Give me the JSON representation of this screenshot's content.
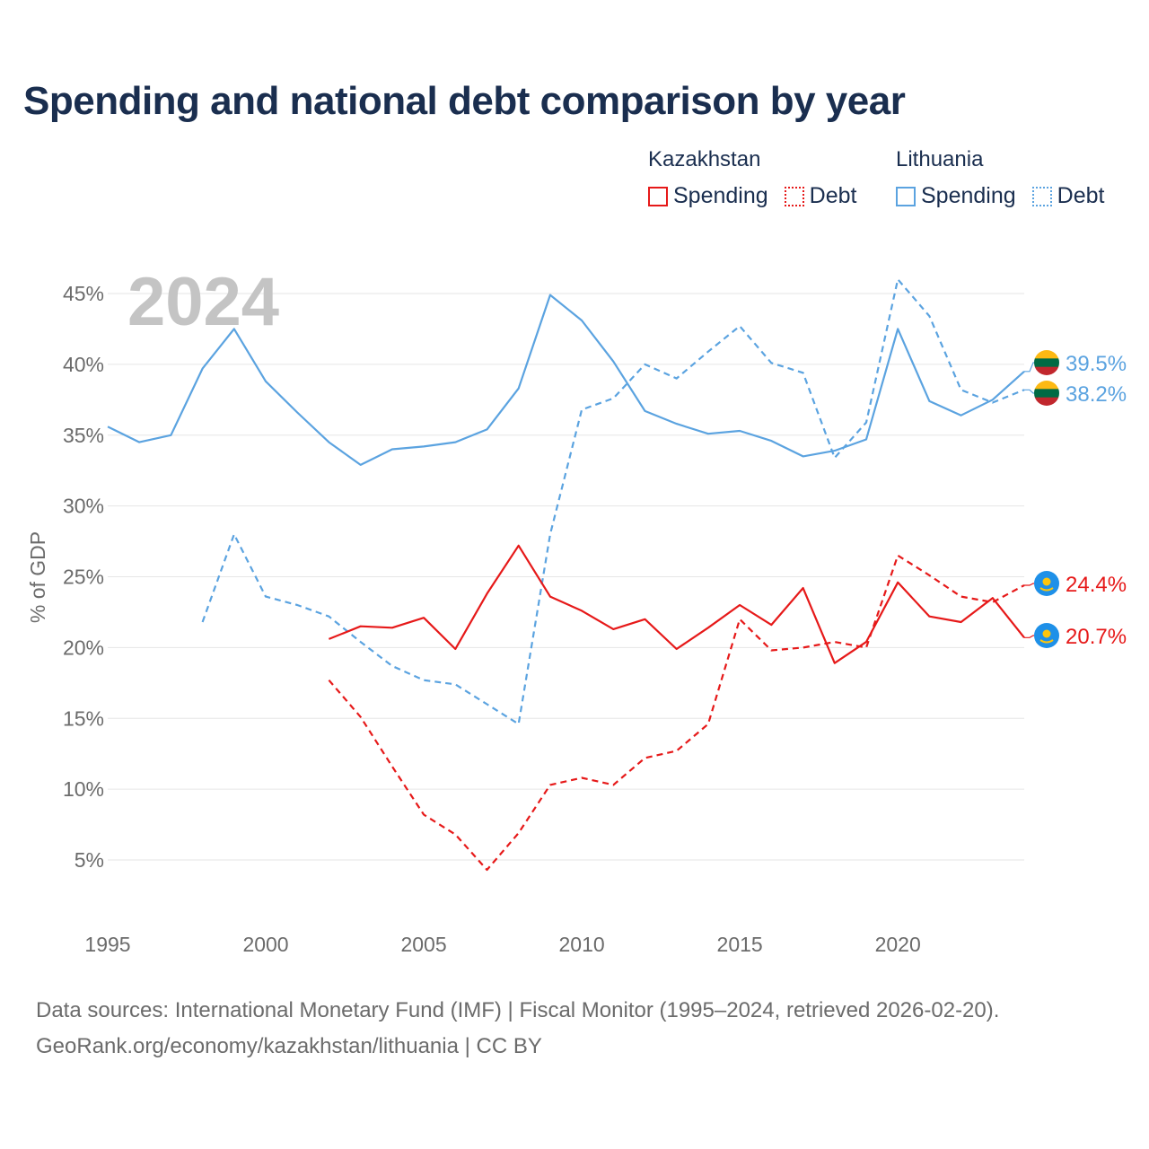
{
  "title": "Spending and national debt comparison by year",
  "legend": {
    "groups": [
      {
        "country": "Kazakhstan",
        "color": "#e61919",
        "items": [
          {
            "label": "Spending",
            "style": "solid"
          },
          {
            "label": "Debt",
            "style": "dotted"
          }
        ]
      },
      {
        "country": "Lithuania",
        "color": "#5ba3e0",
        "items": [
          {
            "label": "Spending",
            "style": "solid"
          },
          {
            "label": "Debt",
            "style": "dotted"
          }
        ]
      }
    ]
  },
  "chart_data": {
    "type": "line",
    "year_watermark": "2024",
    "ylabel": "% of GDP",
    "xlim": [
      1995,
      2024
    ],
    "ylim": [
      0,
      47
    ],
    "yticks": [
      5,
      10,
      15,
      20,
      25,
      30,
      35,
      40,
      45
    ],
    "ytick_labels": [
      "5%",
      "10%",
      "15%",
      "20%",
      "25%",
      "30%",
      "35%",
      "40%",
      "45%"
    ],
    "xticks": [
      1995,
      2000,
      2005,
      2010,
      2015,
      2020
    ],
    "xtick_labels": [
      "1995",
      "2000",
      "2005",
      "2010",
      "2015",
      "2020"
    ],
    "series": [
      {
        "name": "Lithuania Spending",
        "country": "Lithuania",
        "kind": "spending",
        "color": "#5ba3e0",
        "dash": "solid",
        "end_label": "39.5%",
        "flag": "lithuania-flag-icon",
        "x": [
          1995,
          1996,
          1997,
          1998,
          1999,
          2000,
          2001,
          2002,
          2003,
          2004,
          2005,
          2006,
          2007,
          2008,
          2009,
          2010,
          2011,
          2012,
          2013,
          2014,
          2015,
          2016,
          2017,
          2018,
          2019,
          2020,
          2021,
          2022,
          2023,
          2024
        ],
        "values": [
          35.6,
          34.5,
          35.0,
          39.7,
          42.5,
          38.8,
          36.6,
          34.5,
          32.9,
          34.0,
          34.2,
          34.5,
          35.4,
          38.3,
          44.9,
          43.1,
          40.2,
          36.7,
          35.8,
          35.1,
          35.3,
          34.6,
          33.5,
          33.9,
          34.7,
          42.5,
          37.4,
          36.4,
          37.5,
          39.5
        ]
      },
      {
        "name": "Lithuania Debt",
        "country": "Lithuania",
        "kind": "debt",
        "color": "#5ba3e0",
        "dash": "dashed",
        "end_label": "38.2%",
        "flag": "lithuania-flag-icon",
        "x": [
          1998,
          1999,
          2000,
          2001,
          2002,
          2003,
          2004,
          2005,
          2006,
          2007,
          2008,
          2009,
          2010,
          2011,
          2012,
          2013,
          2014,
          2015,
          2016,
          2017,
          2018,
          2019,
          2020,
          2021,
          2022,
          2023,
          2024
        ],
        "values": [
          21.8,
          28.0,
          23.6,
          23.0,
          22.2,
          20.4,
          18.7,
          17.7,
          17.4,
          16.0,
          14.6,
          28.0,
          36.8,
          37.6,
          40.0,
          39.0,
          40.9,
          42.7,
          40.1,
          39.4,
          33.4,
          35.9,
          46.0,
          43.4,
          38.2,
          37.3,
          38.2
        ]
      },
      {
        "name": "Kazakhstan Spending",
        "country": "Kazakhstan",
        "kind": "spending",
        "color": "#e61919",
        "dash": "solid",
        "end_label": "20.7%",
        "flag": "kazakhstan-flag-icon",
        "x": [
          2002,
          2003,
          2004,
          2005,
          2006,
          2007,
          2008,
          2009,
          2010,
          2011,
          2012,
          2013,
          2014,
          2015,
          2016,
          2017,
          2018,
          2019,
          2020,
          2021,
          2022,
          2023,
          2024
        ],
        "values": [
          20.6,
          21.5,
          21.4,
          22.1,
          19.9,
          23.8,
          27.2,
          23.6,
          22.6,
          21.3,
          22.0,
          19.9,
          21.4,
          23.0,
          21.6,
          24.2,
          18.9,
          20.4,
          24.6,
          22.2,
          21.8,
          23.5,
          20.7
        ]
      },
      {
        "name": "Kazakhstan Debt",
        "country": "Kazakhstan",
        "kind": "debt",
        "color": "#e61919",
        "dash": "dashed",
        "end_label": "24.4%",
        "flag": "kazakhstan-flag-icon",
        "x": [
          2002,
          2003,
          2004,
          2005,
          2006,
          2007,
          2008,
          2009,
          2010,
          2011,
          2012,
          2013,
          2014,
          2015,
          2016,
          2017,
          2018,
          2019,
          2020,
          2021,
          2022,
          2023,
          2024
        ],
        "values": [
          17.7,
          15.1,
          11.6,
          8.2,
          6.8,
          4.3,
          6.9,
          10.3,
          10.8,
          10.3,
          12.2,
          12.7,
          14.6,
          22.0,
          19.8,
          20.0,
          20.4,
          20.0,
          26.5,
          25.1,
          23.6,
          23.2,
          24.4
        ]
      }
    ]
  },
  "footer": {
    "line1": "Data sources: International Monetary Fund (IMF) | Fiscal Monitor (1995–2024, retrieved 2026-02-20).",
    "line2": "GeoRank.org/economy/kazakhstan/lithuania | CC BY"
  }
}
